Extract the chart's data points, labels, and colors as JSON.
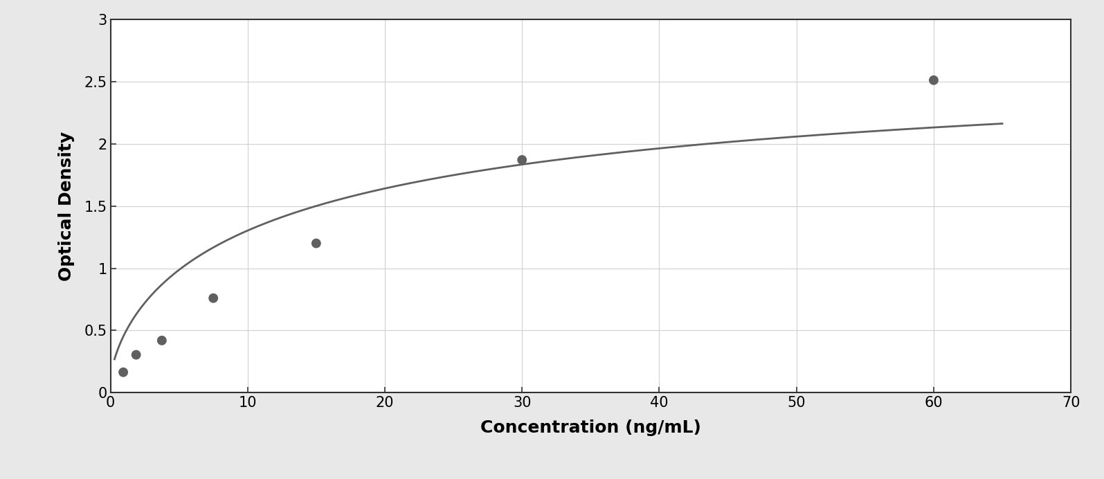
{
  "x_data": [
    0.938,
    1.875,
    3.75,
    7.5,
    15.0,
    30.0,
    60.0
  ],
  "y_data": [
    0.165,
    0.305,
    0.42,
    0.76,
    1.2,
    1.87,
    2.51
  ],
  "xlabel": "Concentration (ng/mL)",
  "ylabel": "Optical Density",
  "xlim": [
    0,
    70
  ],
  "ylim": [
    0,
    3
  ],
  "xticks": [
    0,
    10,
    20,
    30,
    40,
    50,
    60,
    70
  ],
  "yticks": [
    0,
    0.5,
    1.0,
    1.5,
    2.0,
    2.5,
    3.0
  ],
  "dot_color": "#606060",
  "line_color": "#606060",
  "grid_color": "#d0d0d0",
  "plot_bg_color": "#ffffff",
  "fig_bg_color": "#e8e8e8",
  "border_color": "#333333",
  "dot_size": 100,
  "line_width": 2.0,
  "xlabel_fontsize": 18,
  "ylabel_fontsize": 18,
  "tick_fontsize": 15,
  "xlabel_fontweight": "bold",
  "ylabel_fontweight": "bold",
  "curve_xstart": 0.3,
  "curve_xend": 65.0
}
